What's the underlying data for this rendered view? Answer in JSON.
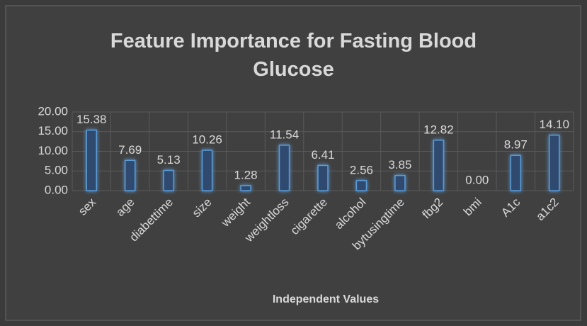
{
  "chart_data": {
    "type": "bar",
    "title": "Feature Importance for Fasting Blood Glucose",
    "x_label": "Independent Values",
    "categories": [
      "sex",
      "age",
      "diabettime",
      "size",
      "weight",
      "weightloss",
      "cigarette",
      "alcohol",
      "bytusingtime",
      "fbg2",
      "bmi",
      "A1c",
      "a1c2"
    ],
    "values": [
      15.38,
      7.69,
      5.13,
      10.26,
      1.28,
      11.54,
      6.41,
      2.56,
      3.85,
      12.82,
      0,
      8.97,
      14.1
    ],
    "value_labels": [
      "15.38",
      "7.69",
      "5.13",
      "10.26",
      "1.28",
      "11.54",
      "6.41",
      "2.56",
      "3.85",
      "12.82",
      "0.00",
      "8.97",
      "14.10"
    ],
    "color": "#5b9bd5",
    "ylim": [
      0,
      20
    ],
    "yticks": [
      {
        "value": 0,
        "label": "0.00"
      },
      {
        "value": 5,
        "label": "5.00"
      },
      {
        "value": 10,
        "label": "10.00"
      },
      {
        "value": 15,
        "label": "15.00"
      },
      {
        "value": 20,
        "label": "20.00"
      }
    ],
    "grid": true
  }
}
